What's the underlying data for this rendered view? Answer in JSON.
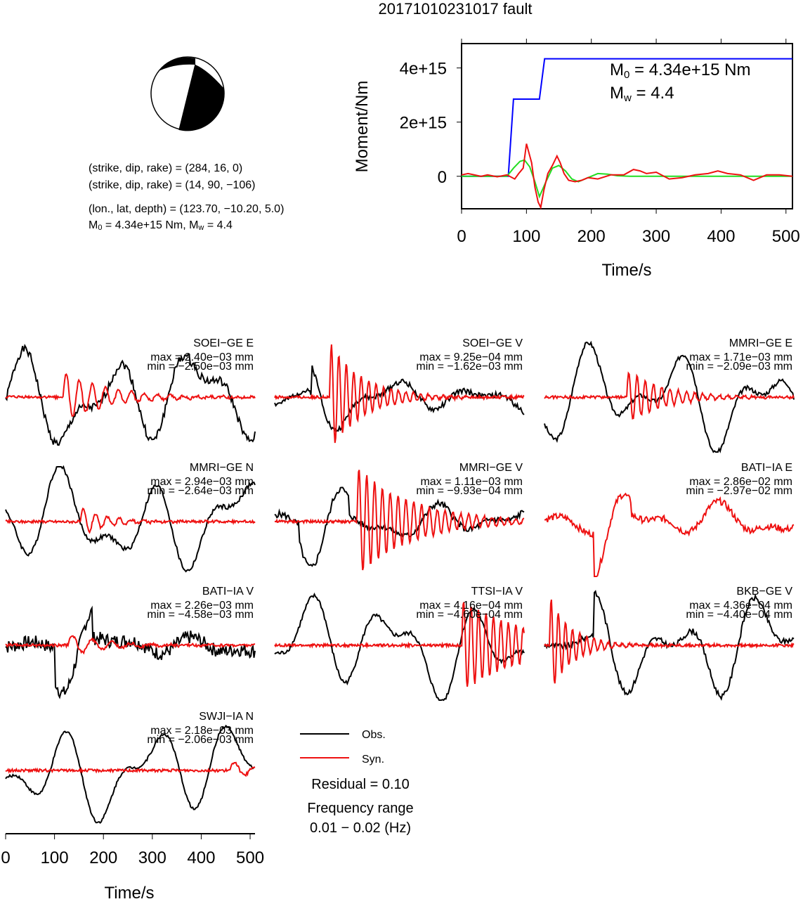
{
  "title": "20171010231017 fault",
  "mechanism": {
    "planes": [
      {
        "text": "(strike, dip, rake) = (284, 16, 0)"
      },
      {
        "text": "(strike, dip, rake) = (14, 90, −106)"
      }
    ],
    "location_text": "(lon., lat, depth) = (123.70, −10.20, 5.0)",
    "m0_sub": "0",
    "m0_rest": " = 4.34e+15 Nm, M",
    "mw_sub": "w",
    "mw_rest": " = 4.4",
    "prefix": "M"
  },
  "moment_chart": {
    "type": "line",
    "ylabel": "Moment/Nm",
    "xlabel": "Time/s",
    "xlim": [
      0,
      510
    ],
    "ylim": [
      -1200000000000000.0,
      4900000000000000.0
    ],
    "xticks": [
      "0",
      "100",
      "200",
      "300",
      "400",
      "500"
    ],
    "xtick_values": [
      0,
      100,
      200,
      300,
      400,
      500
    ],
    "yticks": [
      "0",
      "2e+15",
      "4e+15"
    ],
    "ytick_values": [
      0,
      2000000000000000.0,
      4000000000000000.0
    ],
    "annotation": {
      "m_prefix": "M",
      "m0_sub": "0",
      "m0_rest": " = 4.34e+15 Nm",
      "mw_sub": "w",
      "mw_rest": " = 4.4"
    },
    "series": [
      {
        "color": "#0000ff",
        "x": [
          0,
          72,
          80,
          120,
          128,
          510
        ],
        "y": [
          0,
          0,
          2850000000000000.0,
          2850000000000000.0,
          4340000000000000.0,
          4340000000000000.0
        ]
      },
      {
        "color": "#22dd22",
        "x": [
          0,
          70,
          80,
          90,
          97,
          105,
          113,
          120,
          130,
          140,
          150,
          160,
          170,
          180,
          195,
          210,
          225,
          240,
          260,
          300,
          510
        ],
        "y": [
          0,
          0,
          300000000000000.0,
          550000000000000.0,
          600000000000000.0,
          350000000000000.0,
          -200000000000000.0,
          -750000000000000.0,
          -200000000000000.0,
          300000000000000.0,
          400000000000000.0,
          200000000000000.0,
          -100000000000000.0,
          -200000000000000.0,
          -50000000000000.0,
          100000000000000.0,
          80000000000000.0,
          20000000000000.0,
          0,
          0,
          0
        ]
      },
      {
        "color": "#ee1111",
        "x": [
          0,
          10,
          20,
          30,
          40,
          55,
          70,
          82,
          88,
          95,
          100,
          108,
          113,
          118,
          122,
          127,
          133,
          140,
          147,
          152,
          158,
          165,
          175,
          185,
          195,
          210,
          230,
          250,
          265,
          275,
          285,
          300,
          320,
          340,
          360,
          380,
          395,
          410,
          430,
          450,
          470,
          490,
          510
        ],
        "y": [
          50000000000000.0,
          100000000000000.0,
          50000000000000.0,
          0,
          50000000000000.0,
          -20000000000000.0,
          50000000000000.0,
          -100000000000000.0,
          100000000000000.0,
          300000000000000.0,
          1200000000000000.0,
          500000000000000.0,
          -400000000000000.0,
          -950000000000000.0,
          -1150000000000000.0,
          -500000000000000.0,
          100000000000000.0,
          400000000000000.0,
          750000000000000.0,
          500000000000000.0,
          100000000000000.0,
          -150000000000000.0,
          -200000000000000.0,
          -150000000000000.0,
          -50000000000000.0,
          -100000000000000.0,
          50000000000000.0,
          50000000000000.0,
          250000000000000.0,
          200000000000000.0,
          100000000000000.0,
          150000000000000.0,
          -100000000000000.0,
          -50000000000000.0,
          50000000000000.0,
          100000000000000.0,
          200000000000000.0,
          100000000000000.0,
          50000000000000.0,
          -150000000000000.0,
          50000000000000.0,
          50000000000000.0,
          0
        ]
      }
    ]
  },
  "stations": [
    {
      "name": "SOEI−GE E",
      "max": "max = 2.40e−03 mm",
      "min": "min = −2.50e−03 mm"
    },
    {
      "name": "SOEI−GE V",
      "max": "max = 9.25e−04 mm",
      "min": "min = −1.62e−03 mm"
    },
    {
      "name": "MMRI−GE E",
      "max": "max = 1.71e−03 mm",
      "min": "min = −2.09e−03 mm"
    },
    {
      "name": "MMRI−GE N",
      "max": "max = 2.94e−03 mm",
      "min": "min = −2.64e−03 mm"
    },
    {
      "name": "MMRI−GE V",
      "max": "max = 1.11e−03 mm",
      "min": "min = −9.93e−04 mm"
    },
    {
      "name": "BATI−IA E",
      "max": "max = 2.86e−02 mm",
      "min": "min = −2.97e−02 mm"
    },
    {
      "name": "BATI−IA V",
      "max": "max = 2.26e−03 mm",
      "min": "min = −4.58e−03 mm"
    },
    {
      "name": "TTSI−IA V",
      "max": "max = 4.16e−04 mm",
      "min": "min = −4.60e−04 mm"
    },
    {
      "name": "BKB−GE V",
      "max": "max = 4.36e−04 mm",
      "min": "min = −4.40e−04 mm"
    },
    {
      "name": "SWJI−IA N",
      "max": "max = 2.18e−03 mm",
      "min": "min = −2.06e−03 mm"
    }
  ],
  "waveform_axis": {
    "xlabel": "Time/s",
    "xlim": [
      0,
      510
    ],
    "xticks": [
      "0",
      "100",
      "200",
      "300",
      "400",
      "500"
    ],
    "xtick_values": [
      0,
      100,
      200,
      300,
      400,
      500
    ]
  },
  "legend": {
    "obs": "Obs.",
    "syn": "Syn."
  },
  "residual": "Residual = 0.10",
  "freq_label": "Frequency range",
  "freq_value": "0.01 − 0.02 (Hz)",
  "colors": {
    "obs": "#000000",
    "syn": "#ee1111",
    "moment": "#0000ff",
    "stf": "#22dd22"
  },
  "chart_data": [
    {
      "type": "line",
      "title": "20171010231017 fault",
      "xlabel": "Time/s",
      "ylabel": "Moment/Nm",
      "xlim": [
        0,
        510
      ],
      "ylim": [
        -1200000000000000.0,
        4900000000000000.0
      ],
      "series": [
        {
          "x": [
            0,
            72,
            80,
            120,
            128,
            510
          ],
          "values": [
            0,
            0,
            2850000000000000.0,
            2850000000000000.0,
            4340000000000000.0,
            4340000000000000.0
          ]
        }
      ]
    },
    {
      "type": "line",
      "xlabel": "Time/s",
      "xlim": [
        0,
        510
      ],
      "series": [
        {
          "name": "Obs."
        },
        {
          "name": "Syn."
        }
      ]
    }
  ]
}
